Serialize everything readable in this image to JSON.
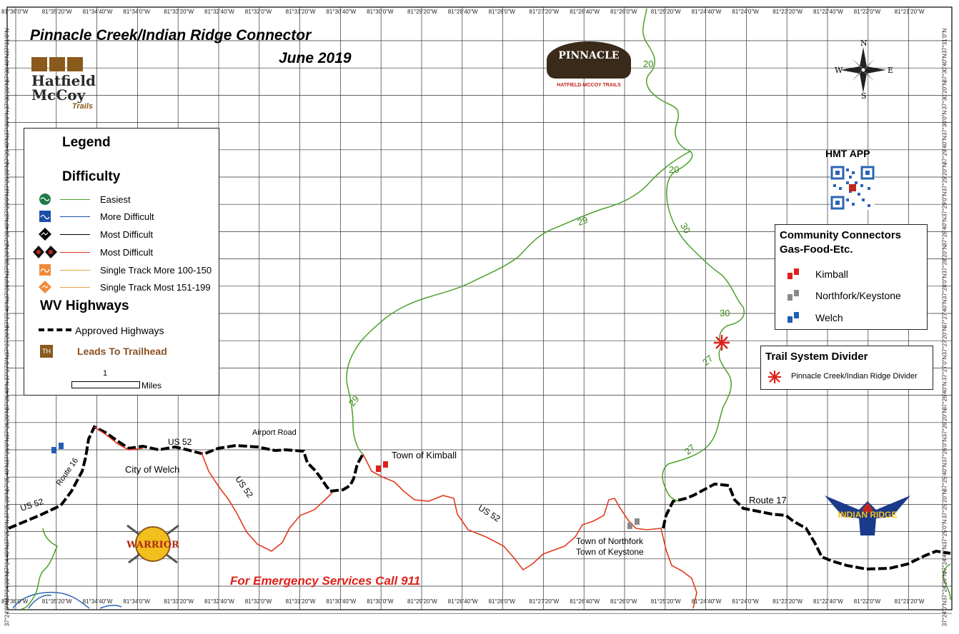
{
  "title": {
    "line1": "Pinnacle Creek/Indian Ridge Connector",
    "line2": "June 2019"
  },
  "logos": {
    "hatfield": {
      "name": "Hatfield McCoy",
      "sub": "Trails"
    },
    "pinnacle": {
      "name": "PINNACLE",
      "sub": "HATFIELD-MCCOY TRAILS"
    },
    "warrior": {
      "name": "WARRIOR"
    },
    "indian_ridge": {
      "name": "INDIAN RIDGE"
    }
  },
  "legend": {
    "title": "Legend",
    "difficulty_title": "Difficulty",
    "difficulty_items": [
      {
        "label": "Easiest",
        "icon": "circle-easiest-icon",
        "icon_color": "#1f7a4a",
        "line_color": "#4aa02a"
      },
      {
        "label": "More Difficult",
        "icon": "square-more-difficult-icon",
        "icon_color": "#1b4fa8",
        "line_color": "#1b4fa8"
      },
      {
        "label": "Most Difficult",
        "icon": "diamond-most-difficult-icon",
        "icon_color": "#000000",
        "line_color": "#000000"
      },
      {
        "label": "Most Difficult",
        "icon": "double-diamond-icon",
        "icon_color": "#c0261f",
        "line_color": "#d9341f"
      },
      {
        "label": "Single Track More 100-150",
        "icon": "single-track-more-icon",
        "icon_color": "#f08a3c",
        "line_color": "#e6a24a"
      },
      {
        "label": "Single Track Most 151-199",
        "icon": "single-track-most-icon",
        "icon_color": "#f08a3c",
        "line_color": "#e6a24a"
      }
    ],
    "highways_title": "WV Highways",
    "approved_highways": "Approved Highways",
    "trailhead_badge": "TH",
    "trailhead_label": "Leads To Trailhead",
    "scale_value": "1",
    "scale_unit": "Miles"
  },
  "app": {
    "title": "HMT APP"
  },
  "community": {
    "title_line1": "Community Connectors",
    "title_line2": "Gas-Food-Etc.",
    "items": [
      {
        "label": "Kimball",
        "color": "#e0201a"
      },
      {
        "label": "Northfork/Keystone",
        "color": "#8a8a8a"
      },
      {
        "label": "Welch",
        "color": "#1f5fb5"
      }
    ]
  },
  "divider": {
    "title": "Trail System Divider",
    "label": "Pinnacle Creek/Indian Ridge Divider",
    "color": "#e0201a"
  },
  "compass": {
    "n": "N",
    "s": "S",
    "e": "E",
    "w": "W"
  },
  "places": {
    "kimball": "Town of Kimball",
    "welch": "City of Welch",
    "northfork": "Town of Northfork",
    "keystone": "Town of Keystone",
    "airport_road": "Airport Road"
  },
  "route_labels": {
    "us52_west": "US 52",
    "us52_welch": "US 52",
    "us52_south": "US 52",
    "us52_east": "US 52",
    "route16": "Route 16",
    "route17": "Route 17",
    "trail20_a": "20",
    "trail20_b": "20",
    "trail29_a": "29",
    "trail29_b": "29",
    "trail30_a": "30",
    "trail30_b": "30",
    "trail27_a": "27",
    "trail27_b": "27"
  },
  "emergency": "For Emergency Services Call 911",
  "coords": {
    "top": [
      "81°36'0\"W",
      "81°35'20\"W",
      "81°34'40\"W",
      "81°34'0\"W",
      "81°33'20\"W",
      "81°32'40\"W",
      "81°32'0\"W",
      "81°31'20\"W",
      "81°30'40\"W",
      "81°30'0\"W",
      "81°29'20\"W",
      "81°28'40\"W",
      "81°28'0\"W",
      "81°27'20\"W",
      "81°26'40\"W",
      "81°26'0\"W",
      "81°25'20\"W",
      "81°24'40\"W",
      "81°24'0\"W",
      "81°23'20\"W",
      "81°22'40\"W",
      "81°22'0\"W",
      "81°21'20\"W"
    ],
    "bottom": [
      "81°36'0\"W",
      "81°35'20\"W",
      "81°34'40\"W",
      "81°34'0\"W",
      "81°33'20\"W",
      "81°32'40\"W",
      "81°32'0\"W",
      "81°31'20\"W",
      "81°30'40\"W",
      "81°30'0\"W",
      "81°29'20\"W",
      "81°28'40\"W",
      "81°28'0\"W",
      "81°27'20\"W",
      "81°26'40\"W",
      "81°26'0\"W",
      "81°25'20\"W",
      "81°24'40\"W",
      "81°24'0\"W",
      "81°23'20\"W",
      "81°22'40\"W",
      "81°22'0\"W",
      "81°21'20\"W"
    ],
    "left": [
      "37°31'0\"N",
      "37°30'40\"N",
      "37°30'20\"N",
      "37°30'0\"N",
      "37°29'40\"N",
      "37°29'20\"N",
      "37°29'0\"N",
      "37°28'40\"N",
      "37°28'20\"N",
      "37°28'0\"N",
      "37°27'40\"N",
      "37°27'20\"N",
      "37°27'0\"N",
      "37°26'40\"N",
      "37°26'20\"N",
      "37°26'0\"N",
      "37°25'40\"N",
      "37°25'20\"N",
      "37°25'0\"N",
      "37°24'40\"N",
      "37°24'20\"N",
      "37°24'0\"N"
    ],
    "right": [
      "37°31'0\"N",
      "37°30'40\"N",
      "37°30'20\"N",
      "37°30'0\"N",
      "37°29'40\"N",
      "37°29'20\"N",
      "37°29'0\"N",
      "37°28'40\"N",
      "37°28'20\"N",
      "37°28'0\"N",
      "37°27'40\"N",
      "37°27'20\"N",
      "37°27'0\"N",
      "37°26'40\"N",
      "37°26'20\"N",
      "37°26'0\"N",
      "37°25'40\"N",
      "37°25'20\"N",
      "37°25'0\"N",
      "37°24'40\"N",
      "37°24'20\"N",
      "37°24'0\"N"
    ]
  }
}
